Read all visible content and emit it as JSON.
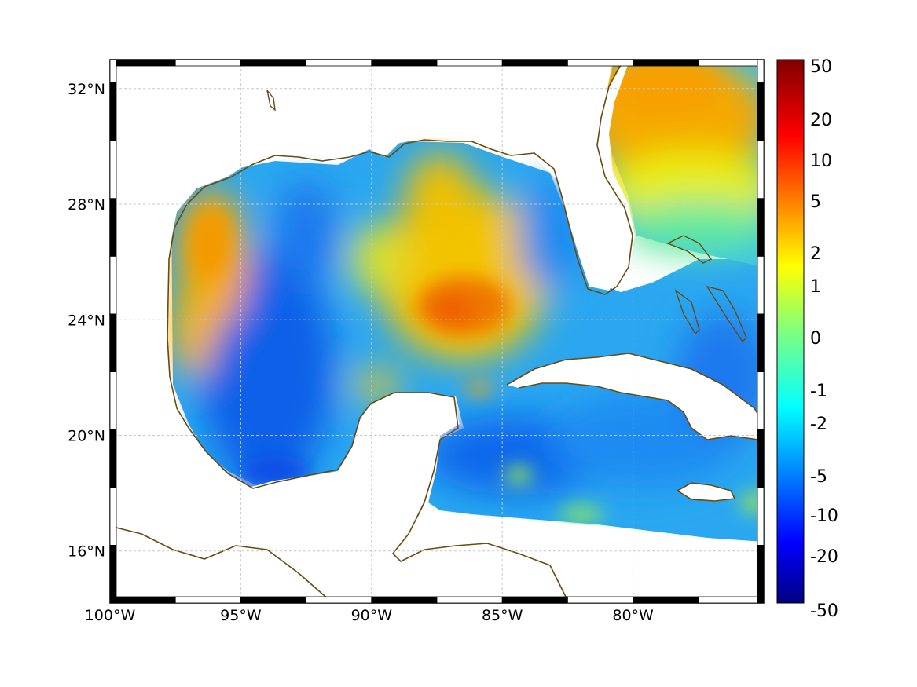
{
  "map": {
    "lon_range": [
      -100,
      -75
    ],
    "lat_range": [
      14.2,
      33.0
    ],
    "x_ticks": [
      {
        "value": -100,
        "label": "100°W"
      },
      {
        "value": -95,
        "label": "95°W"
      },
      {
        "value": -90,
        "label": "90°W"
      },
      {
        "value": -85,
        "label": "85°W"
      },
      {
        "value": -80,
        "label": "80°W"
      }
    ],
    "y_ticks": [
      {
        "value": 32,
        "label": "32°N"
      },
      {
        "value": 28,
        "label": "28°N"
      },
      {
        "value": 24,
        "label": "24°N"
      },
      {
        "value": 20,
        "label": "20°N"
      },
      {
        "value": 16,
        "label": "16°N"
      }
    ],
    "grid": true,
    "coastline_color": "#6a4a10",
    "land_color": "#ffffff"
  },
  "colorbar": {
    "labels": [
      "50",
      "20",
      "10",
      "5",
      "2",
      "1",
      "0",
      "-1",
      "-2",
      "-5",
      "-10",
      "-20",
      "-50"
    ],
    "colormap": "jet",
    "placement": "right"
  }
}
